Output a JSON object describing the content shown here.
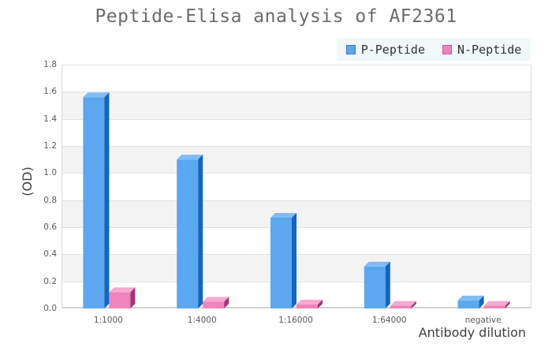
{
  "chart_data": {
    "type": "bar",
    "style": "grouped 3d bars with alternating horizontal background bands",
    "title": "Peptide-Elisa analysis of AF2361",
    "xlabel": "Antibody dilution",
    "ylabel": "(OD)",
    "categories": [
      "1:1000",
      "1:4000",
      "1:16000",
      "1:64000",
      "negative"
    ],
    "series": [
      {
        "name": "P-Peptide",
        "values": [
          1.56,
          1.1,
          0.67,
          0.31,
          0.06
        ],
        "color": "#5ba7f0",
        "color_top": "#7fbcf4",
        "color_side": "#1266c0",
        "swatch_border": "#3d7ab8"
      },
      {
        "name": "N-Peptide",
        "values": [
          0.12,
          0.05,
          0.03,
          0.02,
          0.02
        ],
        "color": "#f083ba",
        "color_top": "#f7a9cf",
        "color_side": "#a53577",
        "swatch_border": "#c25f96"
      }
    ],
    "ylim": [
      0,
      1.8
    ],
    "ytick_step": 0.2,
    "yticks": [
      "0.0",
      "0.2",
      "0.4",
      "0.6",
      "0.8",
      "1.0",
      "1.2",
      "1.4",
      "1.6",
      "1.8"
    ],
    "grid": true,
    "band_color": "#f3f3f3",
    "gridline_color": "#e2e2e2",
    "axisline_color": "#d2d2d2",
    "legend_position": "top-right",
    "legend_bg": "#f0f8fa",
    "title_color": "#6b6b6b",
    "tick_color": "#5a5a5a",
    "axis_label_color": "#3f3f3f"
  }
}
